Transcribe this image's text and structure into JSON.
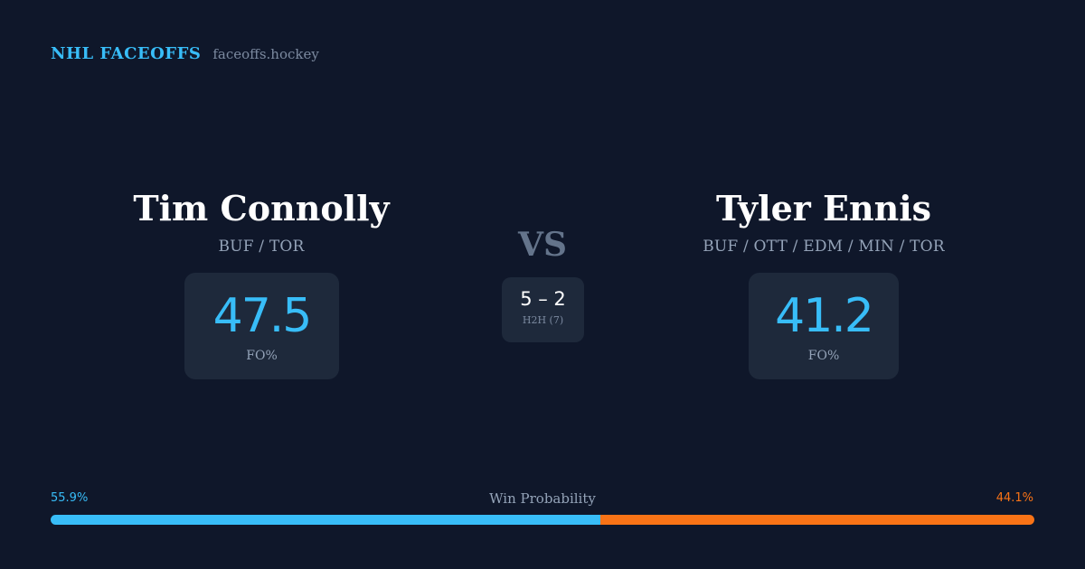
{
  "brand": {
    "name": "NHL FACEOFFS",
    "domain": "faceoffs.hockey"
  },
  "players": [
    {
      "name": "Tim Connolly",
      "teams": "BUF / TOR",
      "fo_pct": "47.5",
      "fo_label": "FO%"
    },
    {
      "name": "Tyler Ennis",
      "teams": "BUF / OTT / EDM / MIN / TOR",
      "fo_pct": "41.2",
      "fo_label": "FO%"
    }
  ],
  "vs_label": "VS",
  "h2h": {
    "score": "5 – 2",
    "label": "H2H (7)"
  },
  "win_probability": {
    "title": "Win Probability",
    "left_label": "55.9%",
    "right_label": "44.1%",
    "left_value": 55.9,
    "right_value": 44.1,
    "left_color": "#38bdf8",
    "right_color": "#f97316"
  }
}
